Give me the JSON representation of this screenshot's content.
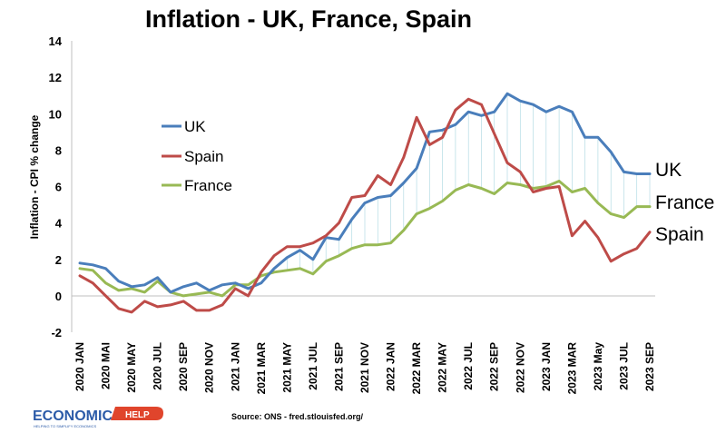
{
  "chart_data": {
    "type": "line",
    "title": "Inflation - UK, France, Spain",
    "ylabel": "Inflation - CPI % change",
    "xlabel": "",
    "ylim": [
      -2,
      14
    ],
    "yticks": [
      -2,
      0,
      2,
      4,
      6,
      8,
      10,
      12,
      14
    ],
    "grid": false,
    "legend_position": "left-middle",
    "x_tick_labels": [
      "2020 JAN",
      "2020 MAI",
      "2020 MAY",
      "2020 JUL",
      "2020 SEP",
      "2020 NOV",
      "2021 JAN",
      "2021 MAR",
      "2021 MAY",
      "2021 JUL",
      "2021 SEP",
      "2021 NOV",
      "2022 JAN",
      "2022 MAR",
      "2022 MAY",
      "2022 JUL",
      "2022 SEP",
      "2022 NOV",
      "2023 JAN",
      "2023 MAR",
      "2023 May",
      "2023 JUL",
      "2023 SEP"
    ],
    "x": [
      "2020-01",
      "2020-02",
      "2020-03",
      "2020-04",
      "2020-05",
      "2020-06",
      "2020-07",
      "2020-08",
      "2020-09",
      "2020-10",
      "2020-11",
      "2020-12",
      "2021-01",
      "2021-02",
      "2021-03",
      "2021-04",
      "2021-05",
      "2021-06",
      "2021-07",
      "2021-08",
      "2021-09",
      "2021-10",
      "2021-11",
      "2021-12",
      "2022-01",
      "2022-02",
      "2022-03",
      "2022-04",
      "2022-05",
      "2022-06",
      "2022-07",
      "2022-08",
      "2022-09",
      "2022-10",
      "2022-11",
      "2022-12",
      "2023-01",
      "2023-02",
      "2023-03",
      "2023-04",
      "2023-05",
      "2023-06",
      "2023-07",
      "2023-08",
      "2023-09"
    ],
    "series": [
      {
        "name": "UK",
        "color": "#4a7ebb",
        "values": [
          1.8,
          1.7,
          1.5,
          0.8,
          0.5,
          0.6,
          1.0,
          0.2,
          0.5,
          0.7,
          0.3,
          0.6,
          0.7,
          0.4,
          0.7,
          1.5,
          2.1,
          2.5,
          2.0,
          3.2,
          3.1,
          4.2,
          5.1,
          5.4,
          5.5,
          6.2,
          7.0,
          9.0,
          9.1,
          9.4,
          10.1,
          9.9,
          10.1,
          11.1,
          10.7,
          10.5,
          10.1,
          10.4,
          10.1,
          8.7,
          8.7,
          7.9,
          6.8,
          6.7,
          6.7
        ]
      },
      {
        "name": "Spain",
        "color": "#be4b48",
        "values": [
          1.1,
          0.7,
          0.0,
          -0.7,
          -0.9,
          -0.3,
          -0.6,
          -0.5,
          -0.3,
          -0.8,
          -0.8,
          -0.5,
          0.4,
          0.0,
          1.3,
          2.2,
          2.7,
          2.7,
          2.9,
          3.3,
          4.0,
          5.4,
          5.5,
          6.6,
          6.1,
          7.6,
          9.8,
          8.3,
          8.7,
          10.2,
          10.8,
          10.5,
          8.9,
          7.3,
          6.8,
          5.7,
          5.9,
          6.0,
          3.3,
          4.1,
          3.2,
          1.9,
          2.3,
          2.6,
          3.5
        ]
      },
      {
        "name": "France",
        "color": "#98b954",
        "values": [
          1.5,
          1.4,
          0.7,
          0.3,
          0.4,
          0.2,
          0.8,
          0.2,
          0.0,
          0.1,
          0.2,
          0.0,
          0.6,
          0.6,
          1.1,
          1.3,
          1.4,
          1.5,
          1.2,
          1.9,
          2.2,
          2.6,
          2.8,
          2.8,
          2.9,
          3.6,
          4.5,
          4.8,
          5.2,
          5.8,
          6.1,
          5.9,
          5.6,
          6.2,
          6.1,
          5.9,
          6.0,
          6.3,
          5.7,
          5.9,
          5.1,
          4.5,
          4.3,
          4.9,
          4.9
        ]
      }
    ],
    "end_labels": [
      "UK",
      "France",
      "Spain"
    ],
    "source": "Source: ONS  -  fred.stlouisfed.org/"
  },
  "logo": {
    "word": "ECONOMICS",
    "badge": "HELP",
    "tagline": "HELPING TO SIMPLIFY ECONOMICS"
  }
}
